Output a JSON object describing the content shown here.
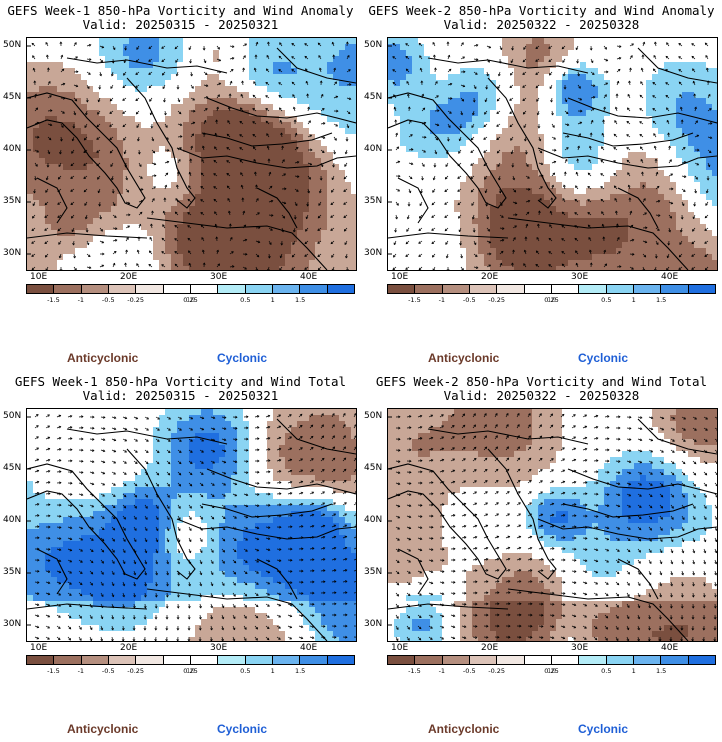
{
  "panels": [
    {
      "id": "p1",
      "title": "GEFS Week-1 850-hPa Vorticity and Wind Anomaly",
      "valid": "Valid: 20250315 - 20250321",
      "kind": "anomaly",
      "seed": 11
    },
    {
      "id": "p2",
      "title": "GEFS Week-2 850-hPa Vorticity and Wind Anomaly",
      "valid": "Valid: 20250322 - 20250328",
      "kind": "anomaly",
      "seed": 23
    },
    {
      "id": "p3",
      "title": "GEFS Week-1 850-hPa Vorticity and Wind Total",
      "valid": "Valid: 20250315 - 20250321",
      "kind": "total",
      "seed": 37
    },
    {
      "id": "p4",
      "title": "GEFS Week-2 850-hPa Vorticity and Wind Total",
      "valid": "Valid: 20250322 - 20250328",
      "kind": "total",
      "seed": 53
    }
  ],
  "axes": {
    "lat_labels": [
      "50N",
      "45N",
      "40N",
      "35N",
      "30N"
    ],
    "lon_labels": [
      "10E",
      "20E",
      "30E",
      "40E"
    ]
  },
  "colorbar": {
    "labels": [
      "-1.5",
      "-1",
      "-0.5",
      "-0.25",
      "0.25",
      "0.5",
      "1",
      "1.5"
    ],
    "unit": "10",
    "colors": [
      "#7a4f3f",
      "#9c705f",
      "#b58f7f",
      "#dcc3b8",
      "#f1e7e2",
      "#ffffff",
      "#ffffff",
      "#b4ecf7",
      "#8ad4f3",
      "#6bb4ef",
      "#3f8fe6",
      "#1f6fe0"
    ]
  },
  "legend": {
    "anticyclonic": "Anticyclonic",
    "cyclonic": "Cyclonic"
  },
  "colors": {
    "anticyclonic_text": "#6b3a2a",
    "cyclonic_text": "#1f5fd6"
  }
}
